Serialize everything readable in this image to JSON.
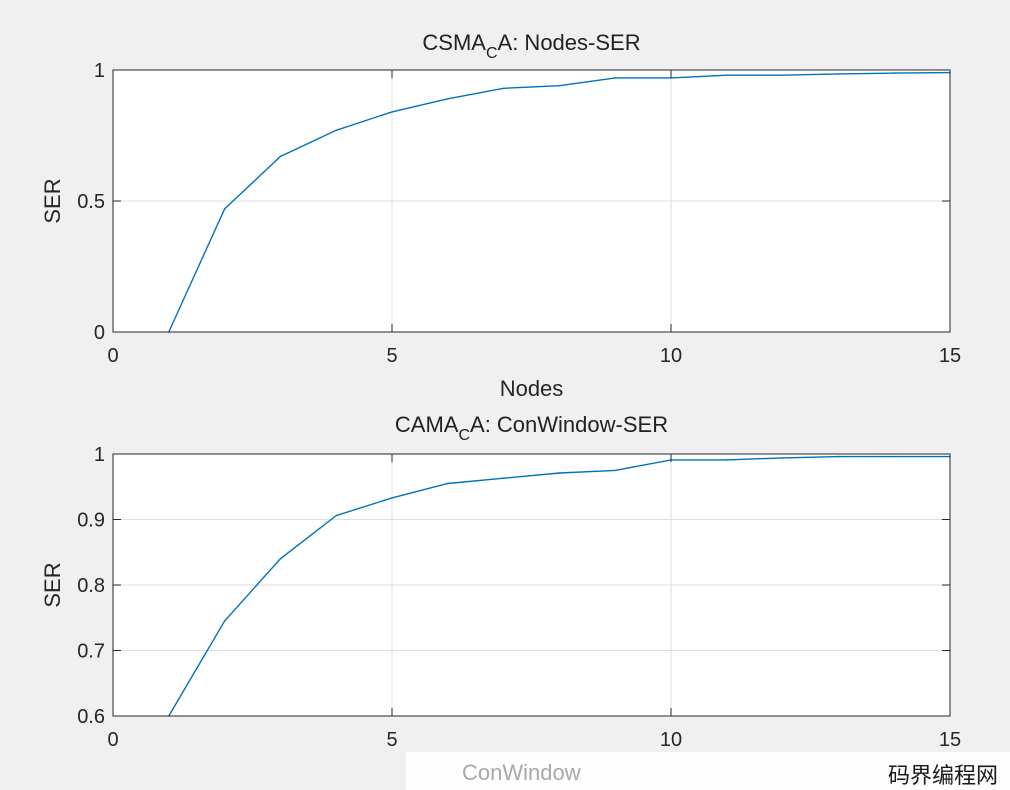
{
  "chart_data": [
    {
      "type": "line",
      "title": {
        "main": "CSMA",
        "sub": "C",
        "rest": "A: Nodes-SER"
      },
      "xlabel": "Nodes",
      "ylabel": "SER",
      "xlim": [
        0,
        15
      ],
      "ylim": [
        0,
        1
      ],
      "xticks": [
        0,
        5,
        10,
        15
      ],
      "yticks": [
        0,
        0.5,
        1
      ],
      "xtick_labels": [
        "0",
        "5",
        "10",
        "15"
      ],
      "ytick_labels": [
        "0",
        "0.5",
        "1"
      ],
      "grid": true,
      "series": [
        {
          "color": "#0072bd",
          "x": [
            1,
            2,
            3,
            4,
            5,
            6,
            7,
            8,
            9,
            10,
            11,
            12,
            13,
            14,
            15
          ],
          "y": [
            0,
            0.47,
            0.67,
            0.77,
            0.84,
            0.89,
            0.93,
            0.94,
            0.97,
            0.97,
            0.98,
            0.98,
            0.985,
            0.988,
            0.99
          ]
        }
      ]
    },
    {
      "type": "line",
      "title": {
        "main": "CAMA",
        "sub": "C",
        "rest": "A: ConWindow-SER"
      },
      "xlabel": "",
      "ylabel": "SER",
      "xlim": [
        0,
        15
      ],
      "ylim": [
        0.6,
        1
      ],
      "xticks": [
        0,
        5,
        10,
        15
      ],
      "yticks": [
        0.6,
        0.7,
        0.8,
        0.9,
        1
      ],
      "xtick_labels": [
        "0",
        "5",
        "10",
        "15"
      ],
      "ytick_labels": [
        "0.6",
        "0.7",
        "0.8",
        "0.9",
        "1"
      ],
      "grid": true,
      "series": [
        {
          "color": "#0072bd",
          "x": [
            1,
            2,
            3,
            4,
            5,
            6,
            7,
            8,
            9,
            10,
            11,
            12,
            13,
            14,
            15
          ],
          "y": [
            0.6,
            0.745,
            0.84,
            0.906,
            0.933,
            0.955,
            0.963,
            0.971,
            0.975,
            0.991,
            0.991,
            0.994,
            0.996,
            0.996,
            0.996
          ]
        }
      ]
    }
  ],
  "watermark": {
    "left_text": "ConWindow",
    "right_text": "码界编程网"
  }
}
